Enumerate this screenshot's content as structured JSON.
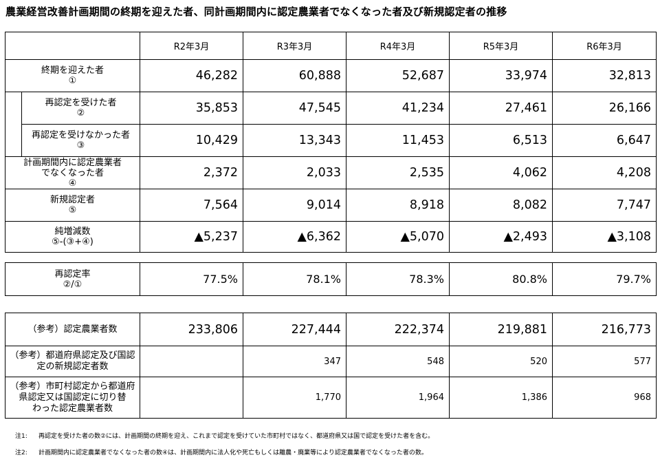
{
  "title": "農業経営改善計画期間の終期を迎えた者、同計画期間内に認定農業者でなくなった者及び新規認定者の推移",
  "headers": [
    "R2年3月",
    "R3年3月",
    "R4年3月",
    "R5年3月",
    "R6年3月"
  ],
  "rows": [
    {
      "label1": "終期を迎えた者",
      "label2": "①",
      "values": [
        "46,282",
        "60,888",
        "52,687",
        "33,974",
        "32,813"
      ]
    },
    {
      "label1": "再認定を受けた者",
      "label2": "②",
      "values": [
        "35,853",
        "47,545",
        "41,234",
        "27,461",
        "26,166"
      ]
    },
    {
      "label1": "再認定を受けなかった者",
      "label2": "③",
      "values": [
        "10,429",
        "13,343",
        "11,453",
        "6,513",
        "6,647"
      ]
    },
    {
      "label1": "計画期間内に認定農業者",
      "label2": "でなくなった者",
      "label3": "④",
      "values": [
        "2,372",
        "2,033",
        "2,535",
        "4,062",
        "4,208"
      ]
    },
    {
      "label1": "新規認定者",
      "label2": "⑤",
      "values": [
        "7,564",
        "9,014",
        "8,918",
        "8,082",
        "7,747"
      ]
    },
    {
      "label1": "純増減数",
      "label2": "⑤-(③+④)",
      "values": [
        "▲5,237",
        "▲6,362",
        "▲5,070",
        "▲2,493",
        "▲3,108"
      ]
    }
  ],
  "rate": {
    "label1": "再認定率",
    "label2": "②/①",
    "values": [
      "77.5%",
      "78.1%",
      "78.3%",
      "80.8%",
      "79.7%"
    ]
  },
  "reference": [
    {
      "lines": [
        "（参考）認定農業者数"
      ],
      "values": [
        "233,806",
        "227,444",
        "222,374",
        "219,881",
        "216,773"
      ]
    },
    {
      "lines": [
        "（参考）都道府県認定及び国認",
        "定の新規認定者数"
      ],
      "values": [
        "",
        "347",
        "548",
        "520",
        "577"
      ]
    },
    {
      "lines": [
        "（参考）市町村認定から都道府",
        "県認定又は国認定に切り替",
        "わった認定農業者数"
      ],
      "values": [
        "",
        "1,770",
        "1,964",
        "1,386",
        "968"
      ]
    }
  ],
  "notes": [
    {
      "key": "注1:",
      "text": "再認定を受けた者の数②には、計画期間の終期を迎え、これまで認定を受けていた市町村ではなく、都道府県又は国で認定を受けた者を含む。"
    },
    {
      "key": "注2:",
      "text": "計画期間内に認定農業者でなくなった者の数④は、計画期間内に法人化や死亡もしくは離農・廃業等により認定農業者でなくなった者の数。"
    }
  ]
}
